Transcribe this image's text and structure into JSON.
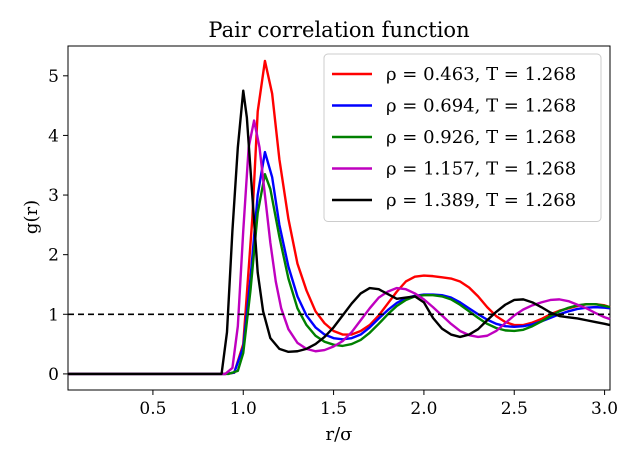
{
  "chart_data": {
    "type": "line",
    "title": "Pair correlation function",
    "xlabel": "r/σ",
    "ylabel": "g(r)",
    "xlim": [
      0.03,
      3.03
    ],
    "ylim": [
      -0.27,
      5.5
    ],
    "xticks": [
      0.5,
      1.0,
      1.5,
      2.0,
      2.5,
      3.0
    ],
    "xtick_labels": [
      "0.5",
      "1.0",
      "1.5",
      "2.0",
      "2.5",
      "3.0"
    ],
    "yticks": [
      0,
      1,
      2,
      3,
      4,
      5
    ],
    "ytick_labels": [
      "0",
      "1",
      "2",
      "3",
      "4",
      "5"
    ],
    "grid": false,
    "legend_position": "top-right",
    "reference_line": {
      "y": 1,
      "style": "dashed",
      "color": "#000000"
    },
    "series": [
      {
        "name": "ρ = 0.463, T = 1.268",
        "color": "#ff0000",
        "points": [
          [
            0.03,
            0
          ],
          [
            0.5,
            0
          ],
          [
            0.9,
            0
          ],
          [
            0.95,
            0.02
          ],
          [
            1.0,
            0.5
          ],
          [
            1.05,
            2.6
          ],
          [
            1.08,
            4.4
          ],
          [
            1.12,
            5.25
          ],
          [
            1.16,
            4.7
          ],
          [
            1.2,
            3.6
          ],
          [
            1.25,
            2.6
          ],
          [
            1.3,
            1.85
          ],
          [
            1.35,
            1.4
          ],
          [
            1.4,
            1.05
          ],
          [
            1.45,
            0.85
          ],
          [
            1.5,
            0.72
          ],
          [
            1.55,
            0.66
          ],
          [
            1.6,
            0.66
          ],
          [
            1.65,
            0.72
          ],
          [
            1.7,
            0.82
          ],
          [
            1.75,
            0.98
          ],
          [
            1.8,
            1.18
          ],
          [
            1.85,
            1.38
          ],
          [
            1.9,
            1.55
          ],
          [
            1.95,
            1.63
          ],
          [
            2.0,
            1.65
          ],
          [
            2.05,
            1.64
          ],
          [
            2.1,
            1.62
          ],
          [
            2.15,
            1.6
          ],
          [
            2.2,
            1.55
          ],
          [
            2.25,
            1.45
          ],
          [
            2.3,
            1.3
          ],
          [
            2.35,
            1.12
          ],
          [
            2.4,
            0.97
          ],
          [
            2.45,
            0.87
          ],
          [
            2.5,
            0.82
          ],
          [
            2.55,
            0.82
          ],
          [
            2.6,
            0.86
          ],
          [
            2.65,
            0.92
          ],
          [
            2.7,
            1.0
          ],
          [
            2.75,
            1.06
          ],
          [
            2.8,
            1.1
          ],
          [
            2.85,
            1.14
          ],
          [
            2.9,
            1.17
          ],
          [
            2.95,
            1.17
          ],
          [
            3.0,
            1.15
          ],
          [
            3.03,
            1.12
          ]
        ]
      },
      {
        "name": "ρ = 0.694, T = 1.268",
        "color": "#0000ff",
        "points": [
          [
            0.03,
            0
          ],
          [
            0.5,
            0
          ],
          [
            0.9,
            0
          ],
          [
            0.95,
            0.02
          ],
          [
            1.0,
            0.45
          ],
          [
            1.04,
            1.6
          ],
          [
            1.08,
            3.0
          ],
          [
            1.12,
            3.72
          ],
          [
            1.16,
            3.3
          ],
          [
            1.2,
            2.5
          ],
          [
            1.25,
            1.8
          ],
          [
            1.3,
            1.3
          ],
          [
            1.35,
            0.98
          ],
          [
            1.4,
            0.78
          ],
          [
            1.45,
            0.66
          ],
          [
            1.5,
            0.6
          ],
          [
            1.55,
            0.58
          ],
          [
            1.6,
            0.6
          ],
          [
            1.65,
            0.66
          ],
          [
            1.7,
            0.78
          ],
          [
            1.75,
            0.93
          ],
          [
            1.8,
            1.07
          ],
          [
            1.85,
            1.19
          ],
          [
            1.9,
            1.27
          ],
          [
            1.95,
            1.31
          ],
          [
            2.0,
            1.33
          ],
          [
            2.05,
            1.33
          ],
          [
            2.1,
            1.32
          ],
          [
            2.15,
            1.28
          ],
          [
            2.2,
            1.2
          ],
          [
            2.25,
            1.1
          ],
          [
            2.3,
            1.0
          ],
          [
            2.35,
            0.91
          ],
          [
            2.4,
            0.84
          ],
          [
            2.45,
            0.8
          ],
          [
            2.5,
            0.79
          ],
          [
            2.55,
            0.8
          ],
          [
            2.6,
            0.83
          ],
          [
            2.65,
            0.88
          ],
          [
            2.7,
            0.94
          ],
          [
            2.75,
            1.0
          ],
          [
            2.8,
            1.05
          ],
          [
            2.85,
            1.09
          ],
          [
            2.9,
            1.11
          ],
          [
            2.95,
            1.12
          ],
          [
            3.0,
            1.11
          ],
          [
            3.03,
            1.1
          ]
        ]
      },
      {
        "name": "ρ = 0.926, T = 1.268",
        "color": "#008000",
        "points": [
          [
            0.03,
            0
          ],
          [
            0.5,
            0
          ],
          [
            0.92,
            0
          ],
          [
            0.97,
            0.05
          ],
          [
            1.0,
            0.35
          ],
          [
            1.04,
            1.4
          ],
          [
            1.08,
            2.7
          ],
          [
            1.12,
            3.35
          ],
          [
            1.15,
            3.1
          ],
          [
            1.2,
            2.3
          ],
          [
            1.25,
            1.6
          ],
          [
            1.3,
            1.1
          ],
          [
            1.35,
            0.82
          ],
          [
            1.4,
            0.64
          ],
          [
            1.45,
            0.54
          ],
          [
            1.5,
            0.49
          ],
          [
            1.55,
            0.47
          ],
          [
            1.6,
            0.5
          ],
          [
            1.65,
            0.57
          ],
          [
            1.7,
            0.69
          ],
          [
            1.75,
            0.84
          ],
          [
            1.8,
            1.0
          ],
          [
            1.85,
            1.14
          ],
          [
            1.9,
            1.24
          ],
          [
            1.95,
            1.3
          ],
          [
            2.0,
            1.32
          ],
          [
            2.05,
            1.32
          ],
          [
            2.1,
            1.3
          ],
          [
            2.15,
            1.25
          ],
          [
            2.2,
            1.16
          ],
          [
            2.25,
            1.05
          ],
          [
            2.3,
            0.94
          ],
          [
            2.35,
            0.84
          ],
          [
            2.4,
            0.77
          ],
          [
            2.45,
            0.73
          ],
          [
            2.5,
            0.72
          ],
          [
            2.55,
            0.74
          ],
          [
            2.6,
            0.8
          ],
          [
            2.65,
            0.88
          ],
          [
            2.7,
            0.97
          ],
          [
            2.75,
            1.05
          ],
          [
            2.8,
            1.11
          ],
          [
            2.85,
            1.15
          ],
          [
            2.9,
            1.17
          ],
          [
            2.95,
            1.17
          ],
          [
            3.0,
            1.14
          ],
          [
            3.03,
            1.12
          ]
        ]
      },
      {
        "name": "ρ = 1.157, T = 1.268",
        "color": "#bf00bf",
        "points": [
          [
            0.03,
            0
          ],
          [
            0.5,
            0
          ],
          [
            0.9,
            0
          ],
          [
            0.94,
            0.1
          ],
          [
            0.97,
            0.8
          ],
          [
            1.0,
            2.4
          ],
          [
            1.03,
            3.8
          ],
          [
            1.06,
            4.25
          ],
          [
            1.09,
            3.8
          ],
          [
            1.12,
            3.0
          ],
          [
            1.15,
            2.2
          ],
          [
            1.18,
            1.55
          ],
          [
            1.21,
            1.1
          ],
          [
            1.25,
            0.75
          ],
          [
            1.3,
            0.52
          ],
          [
            1.35,
            0.42
          ],
          [
            1.4,
            0.38
          ],
          [
            1.45,
            0.4
          ],
          [
            1.5,
            0.46
          ],
          [
            1.55,
            0.55
          ],
          [
            1.6,
            0.7
          ],
          [
            1.65,
            0.9
          ],
          [
            1.7,
            1.1
          ],
          [
            1.75,
            1.28
          ],
          [
            1.8,
            1.38
          ],
          [
            1.85,
            1.44
          ],
          [
            1.9,
            1.42
          ],
          [
            1.95,
            1.35
          ],
          [
            2.0,
            1.25
          ],
          [
            2.05,
            1.12
          ],
          [
            2.1,
            0.98
          ],
          [
            2.15,
            0.84
          ],
          [
            2.2,
            0.72
          ],
          [
            2.25,
            0.65
          ],
          [
            2.3,
            0.62
          ],
          [
            2.35,
            0.64
          ],
          [
            2.4,
            0.72
          ],
          [
            2.45,
            0.85
          ],
          [
            2.5,
            0.98
          ],
          [
            2.55,
            1.08
          ],
          [
            2.6,
            1.15
          ],
          [
            2.65,
            1.2
          ],
          [
            2.7,
            1.24
          ],
          [
            2.75,
            1.25
          ],
          [
            2.8,
            1.22
          ],
          [
            2.85,
            1.16
          ],
          [
            2.9,
            1.1
          ],
          [
            2.95,
            1.02
          ],
          [
            3.0,
            0.95
          ],
          [
            3.03,
            0.92
          ]
        ]
      },
      {
        "name": "ρ = 1.389, T = 1.268",
        "color": "#000000",
        "points": [
          [
            0.03,
            0
          ],
          [
            0.5,
            0
          ],
          [
            0.88,
            0
          ],
          [
            0.91,
            0.7
          ],
          [
            0.94,
            2.4
          ],
          [
            0.97,
            3.8
          ],
          [
            1.0,
            4.75
          ],
          [
            1.02,
            4.3
          ],
          [
            1.05,
            3.0
          ],
          [
            1.08,
            1.7
          ],
          [
            1.11,
            1.05
          ],
          [
            1.15,
            0.6
          ],
          [
            1.2,
            0.42
          ],
          [
            1.25,
            0.37
          ],
          [
            1.3,
            0.38
          ],
          [
            1.35,
            0.42
          ],
          [
            1.4,
            0.5
          ],
          [
            1.45,
            0.62
          ],
          [
            1.5,
            0.78
          ],
          [
            1.55,
            0.98
          ],
          [
            1.6,
            1.18
          ],
          [
            1.65,
            1.35
          ],
          [
            1.7,
            1.44
          ],
          [
            1.75,
            1.42
          ],
          [
            1.8,
            1.34
          ],
          [
            1.85,
            1.26
          ],
          [
            1.9,
            1.28
          ],
          [
            1.95,
            1.3
          ],
          [
            2.0,
            1.2
          ],
          [
            2.05,
            0.94
          ],
          [
            2.1,
            0.76
          ],
          [
            2.15,
            0.66
          ],
          [
            2.2,
            0.62
          ],
          [
            2.25,
            0.66
          ],
          [
            2.3,
            0.75
          ],
          [
            2.35,
            0.9
          ],
          [
            2.4,
            1.04
          ],
          [
            2.45,
            1.16
          ],
          [
            2.5,
            1.24
          ],
          [
            2.55,
            1.25
          ],
          [
            2.6,
            1.2
          ],
          [
            2.65,
            1.12
          ],
          [
            2.7,
            1.03
          ],
          [
            2.75,
            0.97
          ],
          [
            2.8,
            0.95
          ],
          [
            2.85,
            0.93
          ],
          [
            2.9,
            0.9
          ],
          [
            2.95,
            0.87
          ],
          [
            3.0,
            0.84
          ],
          [
            3.03,
            0.82
          ]
        ]
      }
    ]
  }
}
